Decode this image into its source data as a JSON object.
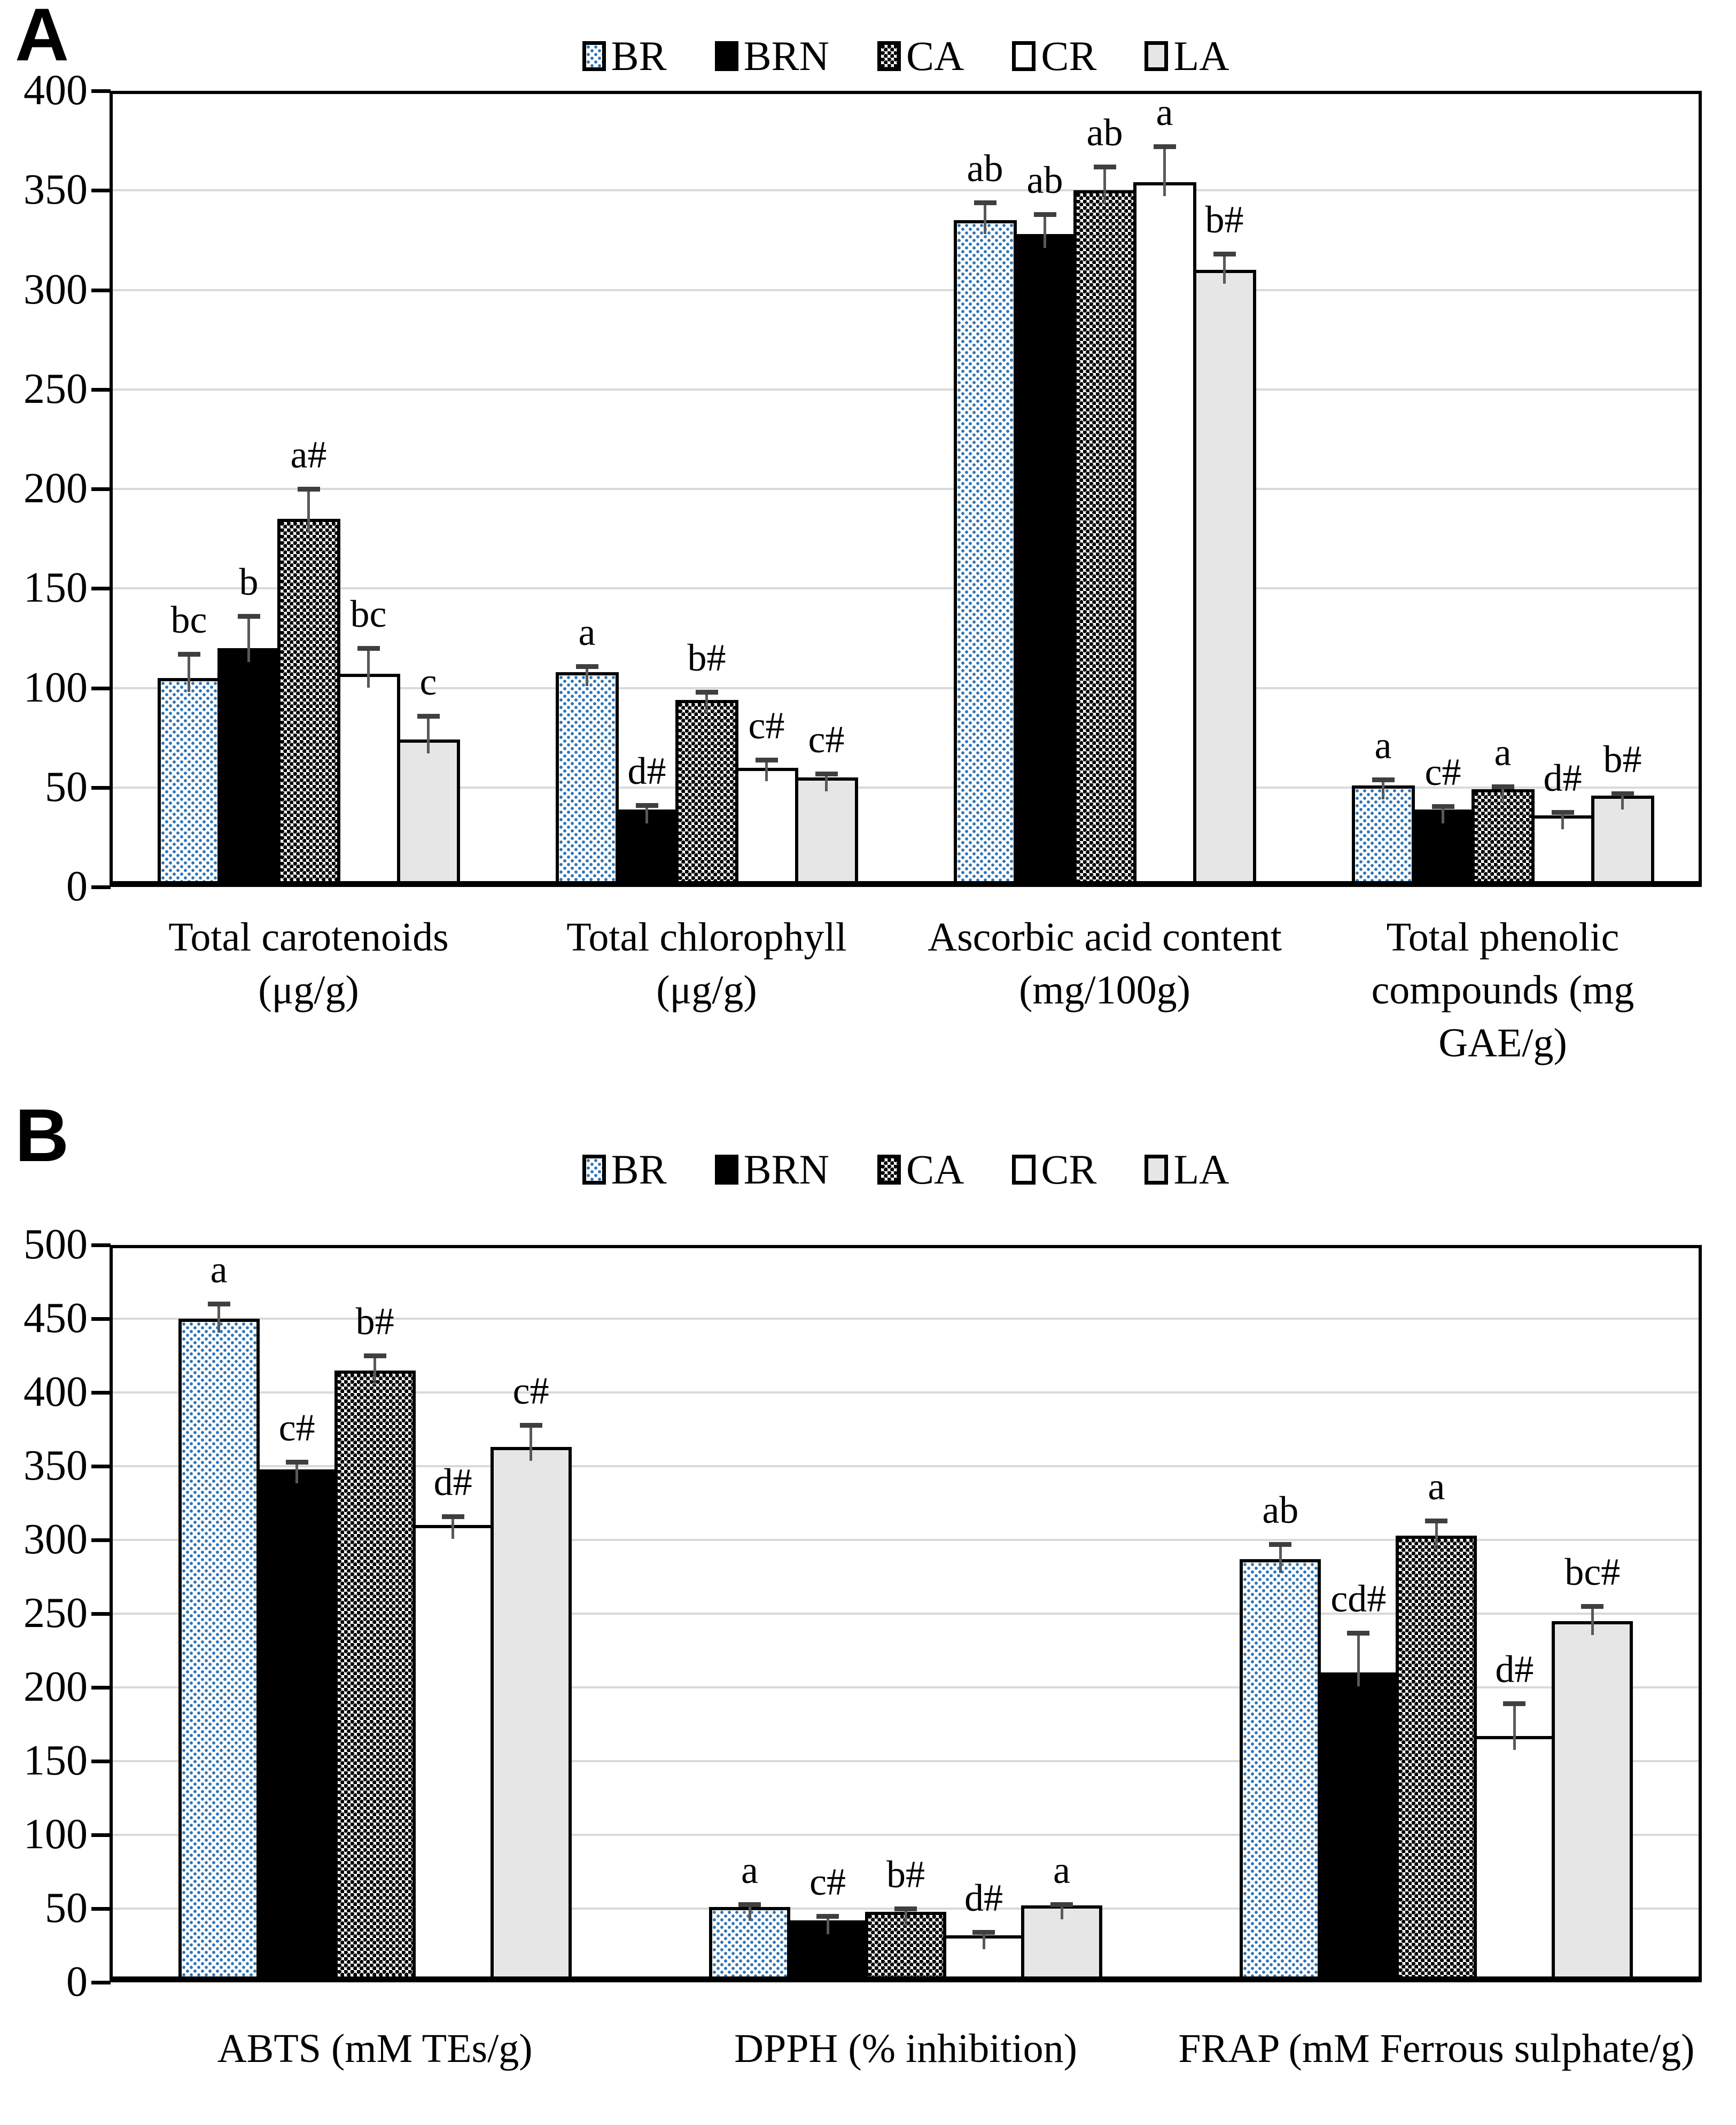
{
  "colors": {
    "br_dot_blue": "#2e75b6",
    "bar_black": "#000000",
    "bar_white": "#ffffff",
    "la_gray": "#e7e6e6",
    "gridline_gray": "#d9d9d9",
    "error_bar_gray": "#595959"
  },
  "chart_data": [
    {
      "panel": "A",
      "type": "bar",
      "grid": true,
      "legend_position": "top-center",
      "ylim": [
        0,
        400
      ],
      "ytick_step": 50,
      "series_names": [
        "BR",
        "BRN",
        "CA",
        "CR",
        "LA"
      ],
      "categories": [
        {
          "label": "Total carotenoids\n(μg/g)",
          "values": [
            105,
            120,
            185,
            107,
            74
          ],
          "errors": [
            12,
            16,
            15,
            13,
            12
          ],
          "letters": [
            "bc",
            "b",
            "a#",
            "bc",
            "c"
          ]
        },
        {
          "label": "Total chlorophyll\n(μg/g)",
          "values": [
            108,
            39,
            94,
            60,
            55
          ],
          "errors": [
            3,
            2,
            4,
            4,
            2
          ],
          "letters": [
            "a",
            "d#",
            "b#",
            "c#",
            "c#"
          ]
        },
        {
          "label": "Ascorbic acid content\n(mg/100g)",
          "values": [
            335,
            328,
            350,
            354,
            310
          ],
          "errors": [
            9,
            10,
            12,
            18,
            8
          ],
          "letters": [
            "ab",
            "ab",
            "ab",
            "a",
            "b#"
          ]
        },
        {
          "label": "Total phenolic\ncompounds (mg\nGAE/g)",
          "values": [
            51,
            39,
            49,
            36,
            46
          ],
          "errors": [
            3,
            1.5,
            1.5,
            1.5,
            1
          ],
          "letters": [
            "a",
            "c#",
            "a",
            "d#",
            "b#"
          ]
        }
      ]
    },
    {
      "panel": "B",
      "type": "bar",
      "grid": true,
      "legend_position": "top-center",
      "ylim": [
        0,
        500
      ],
      "ytick_step": 50,
      "series_names": [
        "BR",
        "BRN",
        "CA",
        "CR",
        "LA"
      ],
      "categories": [
        {
          "label": "ABTS (mM TEs/g)",
          "values": [
            450,
            348,
            415,
            310,
            363
          ],
          "errors": [
            10,
            5,
            10,
            6,
            15
          ],
          "letters": [
            "a",
            "c#",
            "b#",
            "d#",
            "c#"
          ]
        },
        {
          "label": "DPPH (% inhibition)",
          "values": [
            51,
            42,
            48,
            32,
            52
          ],
          "errors": [
            2,
            3,
            2,
            2,
            1
          ],
          "letters": [
            "a",
            "c#",
            "b#",
            "d#",
            "a"
          ]
        },
        {
          "label": "FRAP (mM Ferrous sulphate/g)",
          "values": [
            287,
            210,
            303,
            167,
            245
          ],
          "errors": [
            10,
            27,
            10,
            22,
            10
          ],
          "letters": [
            "ab",
            "cd#",
            "a",
            "d#",
            "bc#"
          ]
        }
      ]
    }
  ]
}
